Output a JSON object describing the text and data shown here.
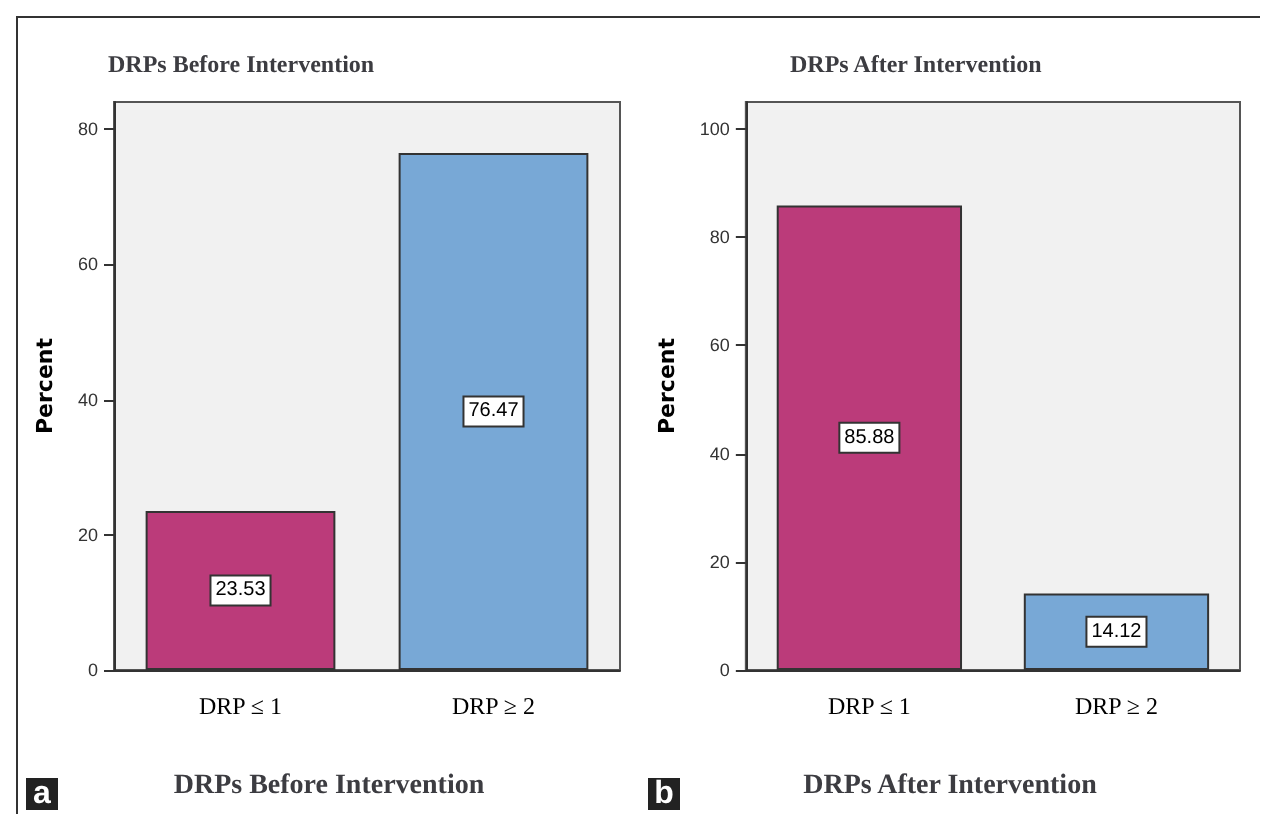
{
  "chart_data": [
    {
      "type": "bar",
      "title": "DRPs Before Intervention",
      "xlabel": "DRPs Before Intervention",
      "ylabel": "Percent",
      "categories": [
        "DRP ≤ 1",
        "DRP ≥ 2"
      ],
      "values": [
        23.53,
        76.47
      ],
      "colors": [
        "#bb3b7a",
        "#78a8d6"
      ],
      "ylim": [
        0,
        84
      ],
      "yticks": [
        0,
        20,
        40,
        60,
        80
      ],
      "grid": false,
      "data_labels": true,
      "annotations": [
        "a"
      ]
    },
    {
      "type": "bar",
      "title": "DRPs After Intervention",
      "xlabel": "DRPs After Intervention",
      "ylabel": "Percent",
      "categories": [
        "DRP ≤ 1",
        "DRP ≥ 2"
      ],
      "values": [
        85.88,
        14.12
      ],
      "colors": [
        "#bb3b7a",
        "#78a8d6"
      ],
      "ylim": [
        0,
        105
      ],
      "yticks": [
        0,
        20,
        40,
        60,
        80,
        100
      ],
      "grid": false,
      "data_labels": true,
      "annotations": [
        "b"
      ]
    }
  ]
}
